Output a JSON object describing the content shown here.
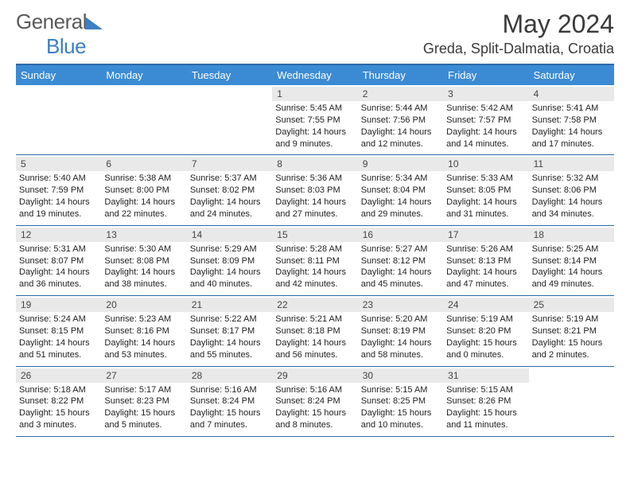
{
  "brand": {
    "general": "General",
    "blue": "Blue"
  },
  "title": "May 2024",
  "location": "Greda, Split-Dalmatia, Croatia",
  "colors": {
    "header_bg": "#3b8bd4",
    "border": "#2c6aa8",
    "daynum_bg": "#e9e9e9"
  },
  "dayNames": [
    "Sunday",
    "Monday",
    "Tuesday",
    "Wednesday",
    "Thursday",
    "Friday",
    "Saturday"
  ],
  "weeks": [
    [
      null,
      null,
      null,
      {
        "d": "1",
        "sr": "5:45 AM",
        "ss": "7:55 PM",
        "dl": "14 hours and 9 minutes."
      },
      {
        "d": "2",
        "sr": "5:44 AM",
        "ss": "7:56 PM",
        "dl": "14 hours and 12 minutes."
      },
      {
        "d": "3",
        "sr": "5:42 AM",
        "ss": "7:57 PM",
        "dl": "14 hours and 14 minutes."
      },
      {
        "d": "4",
        "sr": "5:41 AM",
        "ss": "7:58 PM",
        "dl": "14 hours and 17 minutes."
      }
    ],
    [
      {
        "d": "5",
        "sr": "5:40 AM",
        "ss": "7:59 PM",
        "dl": "14 hours and 19 minutes."
      },
      {
        "d": "6",
        "sr": "5:38 AM",
        "ss": "8:00 PM",
        "dl": "14 hours and 22 minutes."
      },
      {
        "d": "7",
        "sr": "5:37 AM",
        "ss": "8:02 PM",
        "dl": "14 hours and 24 minutes."
      },
      {
        "d": "8",
        "sr": "5:36 AM",
        "ss": "8:03 PM",
        "dl": "14 hours and 27 minutes."
      },
      {
        "d": "9",
        "sr": "5:34 AM",
        "ss": "8:04 PM",
        "dl": "14 hours and 29 minutes."
      },
      {
        "d": "10",
        "sr": "5:33 AM",
        "ss": "8:05 PM",
        "dl": "14 hours and 31 minutes."
      },
      {
        "d": "11",
        "sr": "5:32 AM",
        "ss": "8:06 PM",
        "dl": "14 hours and 34 minutes."
      }
    ],
    [
      {
        "d": "12",
        "sr": "5:31 AM",
        "ss": "8:07 PM",
        "dl": "14 hours and 36 minutes."
      },
      {
        "d": "13",
        "sr": "5:30 AM",
        "ss": "8:08 PM",
        "dl": "14 hours and 38 minutes."
      },
      {
        "d": "14",
        "sr": "5:29 AM",
        "ss": "8:09 PM",
        "dl": "14 hours and 40 minutes."
      },
      {
        "d": "15",
        "sr": "5:28 AM",
        "ss": "8:11 PM",
        "dl": "14 hours and 42 minutes."
      },
      {
        "d": "16",
        "sr": "5:27 AM",
        "ss": "8:12 PM",
        "dl": "14 hours and 45 minutes."
      },
      {
        "d": "17",
        "sr": "5:26 AM",
        "ss": "8:13 PM",
        "dl": "14 hours and 47 minutes."
      },
      {
        "d": "18",
        "sr": "5:25 AM",
        "ss": "8:14 PM",
        "dl": "14 hours and 49 minutes."
      }
    ],
    [
      {
        "d": "19",
        "sr": "5:24 AM",
        "ss": "8:15 PM",
        "dl": "14 hours and 51 minutes."
      },
      {
        "d": "20",
        "sr": "5:23 AM",
        "ss": "8:16 PM",
        "dl": "14 hours and 53 minutes."
      },
      {
        "d": "21",
        "sr": "5:22 AM",
        "ss": "8:17 PM",
        "dl": "14 hours and 55 minutes."
      },
      {
        "d": "22",
        "sr": "5:21 AM",
        "ss": "8:18 PM",
        "dl": "14 hours and 56 minutes."
      },
      {
        "d": "23",
        "sr": "5:20 AM",
        "ss": "8:19 PM",
        "dl": "14 hours and 58 minutes."
      },
      {
        "d": "24",
        "sr": "5:19 AM",
        "ss": "8:20 PM",
        "dl": "15 hours and 0 minutes."
      },
      {
        "d": "25",
        "sr": "5:19 AM",
        "ss": "8:21 PM",
        "dl": "15 hours and 2 minutes."
      }
    ],
    [
      {
        "d": "26",
        "sr": "5:18 AM",
        "ss": "8:22 PM",
        "dl": "15 hours and 3 minutes."
      },
      {
        "d": "27",
        "sr": "5:17 AM",
        "ss": "8:23 PM",
        "dl": "15 hours and 5 minutes."
      },
      {
        "d": "28",
        "sr": "5:16 AM",
        "ss": "8:24 PM",
        "dl": "15 hours and 7 minutes."
      },
      {
        "d": "29",
        "sr": "5:16 AM",
        "ss": "8:24 PM",
        "dl": "15 hours and 8 minutes."
      },
      {
        "d": "30",
        "sr": "5:15 AM",
        "ss": "8:25 PM",
        "dl": "15 hours and 10 minutes."
      },
      {
        "d": "31",
        "sr": "5:15 AM",
        "ss": "8:26 PM",
        "dl": "15 hours and 11 minutes."
      },
      null
    ]
  ],
  "labels": {
    "sunrise": "Sunrise:",
    "sunset": "Sunset:",
    "daylight": "Daylight:"
  }
}
